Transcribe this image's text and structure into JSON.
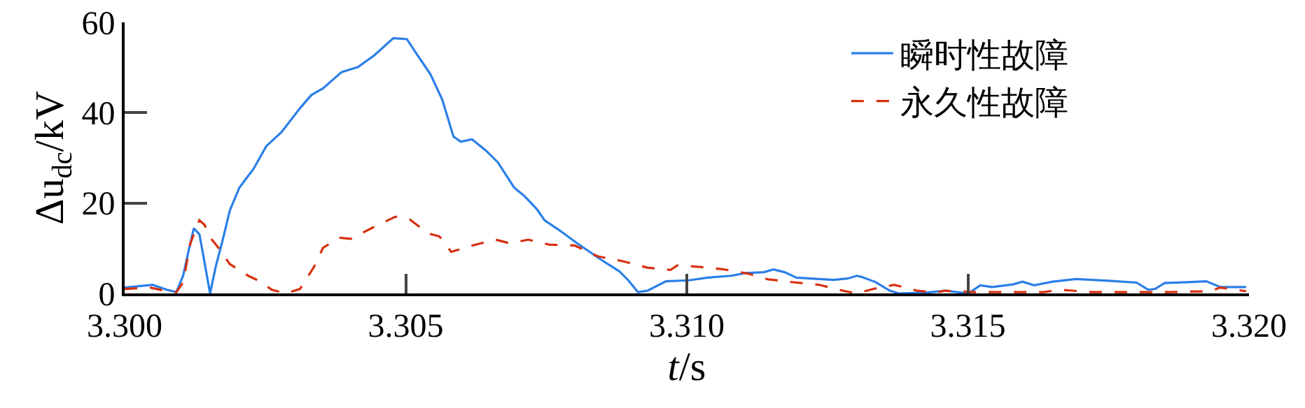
{
  "chart_data": {
    "type": "line",
    "xlabel": "t/s",
    "ylabel": "Δu$_{dc}$/kV",
    "xlim": [
      3.3,
      3.32
    ],
    "xticks": [
      {
        "value": 3.3,
        "label": "3.300"
      },
      {
        "value": 3.305,
        "label": "3.305"
      },
      {
        "value": 3.31,
        "label": "3.310"
      },
      {
        "value": 3.315,
        "label": "3.315"
      },
      {
        "value": 3.32,
        "label": "3.320"
      }
    ],
    "ylim": [
      0,
      60
    ],
    "yticks": [
      0,
      20,
      40,
      60
    ],
    "grid": false,
    "legend": "top right",
    "marker": "none",
    "series": [
      {
        "name": "瞬时性故障",
        "color": "#2a7fe8",
        "line_style": "solid",
        "x": [
          3.3,
          3.3005,
          3.30075,
          3.30092,
          3.30104,
          3.30113,
          3.30123,
          3.30133,
          3.30142,
          3.30152,
          3.30162,
          3.30175,
          3.30187,
          3.30204,
          3.30216,
          3.30229,
          3.30252,
          3.30279,
          3.30312,
          3.30332,
          3.30353,
          3.30386,
          3.30415,
          3.30444,
          3.30478,
          3.30502,
          3.30519,
          3.30544,
          3.30565,
          3.30585,
          3.30598,
          3.30618,
          3.30643,
          3.30664,
          3.30693,
          3.3071,
          3.30733,
          3.30747,
          3.30772,
          3.30805,
          3.30847,
          3.3088,
          3.30896,
          3.30913,
          3.3093,
          3.30963,
          3.31004,
          3.31037,
          3.31079,
          3.31104,
          3.31137,
          3.31154,
          3.31174,
          3.31195,
          3.3122,
          3.31261,
          3.31286,
          3.31302,
          3.3131,
          3.31336,
          3.31361,
          3.31377,
          3.31427,
          3.3146,
          3.31501,
          3.31522,
          3.31543,
          3.3158,
          3.31597,
          3.31618,
          3.31651,
          3.31692,
          3.3175,
          3.318,
          3.31821,
          3.31833,
          3.3185,
          3.31891,
          3.31924,
          3.31949,
          3.31995
        ],
        "values": [
          1.3,
          1.9,
          0.8,
          0.3,
          3.9,
          9.0,
          14.4,
          13.1,
          7.0,
          0,
          5.9,
          12.1,
          18.3,
          23.4,
          25.4,
          27.5,
          32.6,
          35.7,
          41.0,
          43.9,
          45.4,
          49.0,
          50.1,
          52.7,
          56.5,
          56.3,
          53.1,
          48.5,
          42.9,
          34.7,
          33.6,
          34.1,
          31.6,
          29.0,
          23.4,
          21.7,
          18.7,
          16.2,
          14.1,
          11.1,
          7.5,
          4.9,
          2.9,
          0.3,
          0.6,
          2.7,
          2.9,
          3.5,
          3.9,
          4.5,
          4.7,
          5.3,
          4.7,
          3.5,
          3.3,
          3.0,
          3.3,
          3.9,
          3.7,
          2.5,
          0.6,
          0,
          0.2,
          0.6,
          0,
          1.8,
          1.4,
          2.0,
          2.6,
          1.8,
          2.6,
          3.2,
          2.8,
          2.4,
          0.8,
          1.0,
          2.3,
          2.5,
          2.7,
          1.4,
          1.4
        ]
      },
      {
        "name": "永久性故障",
        "color": "#d83010",
        "line_style": "dashed",
        "x": [
          3.3,
          3.30046,
          3.30071,
          3.30092,
          3.30104,
          3.30117,
          3.30133,
          3.30142,
          3.30154,
          3.30167,
          3.30187,
          3.3022,
          3.30237,
          3.30262,
          3.30287,
          3.30312,
          3.30337,
          3.30353,
          3.30383,
          3.30403,
          3.3044,
          3.30482,
          3.30507,
          3.3054,
          3.3056,
          3.30581,
          3.30618,
          3.3066,
          3.30685,
          3.30718,
          3.30755,
          3.30801,
          3.30842,
          3.30884,
          3.3093,
          3.30971,
          3.30983,
          3.3102,
          3.31062,
          3.31108,
          3.31145,
          3.31195,
          3.31236,
          3.31278,
          3.31302,
          3.31332,
          3.31369,
          3.3141,
          3.31443,
          3.3146,
          3.31511,
          3.3156,
          3.31634,
          3.31665,
          3.3172,
          3.31817,
          3.31858,
          3.31933,
          3.31948,
          3.31995
        ],
        "values": [
          1.0,
          1.3,
          0.6,
          0.3,
          2.4,
          11.1,
          16.2,
          15.2,
          12.1,
          10.1,
          6.5,
          3.9,
          2.9,
          0.8,
          0,
          1.0,
          5.9,
          10.1,
          12.3,
          12.1,
          14.5,
          17.0,
          16.4,
          13.3,
          12.6,
          9.2,
          10.6,
          11.9,
          11.1,
          11.9,
          10.8,
          10.6,
          8.2,
          7.2,
          5.7,
          5.2,
          6.2,
          5.9,
          5.4,
          4.4,
          3.1,
          2.4,
          1.9,
          0.6,
          0,
          1.0,
          1.9,
          0.6,
          0.2,
          0.6,
          0.3,
          0.3,
          0.3,
          0.8,
          0.3,
          0.3,
          0.3,
          0.5,
          1.3,
          0.5
        ]
      }
    ]
  }
}
